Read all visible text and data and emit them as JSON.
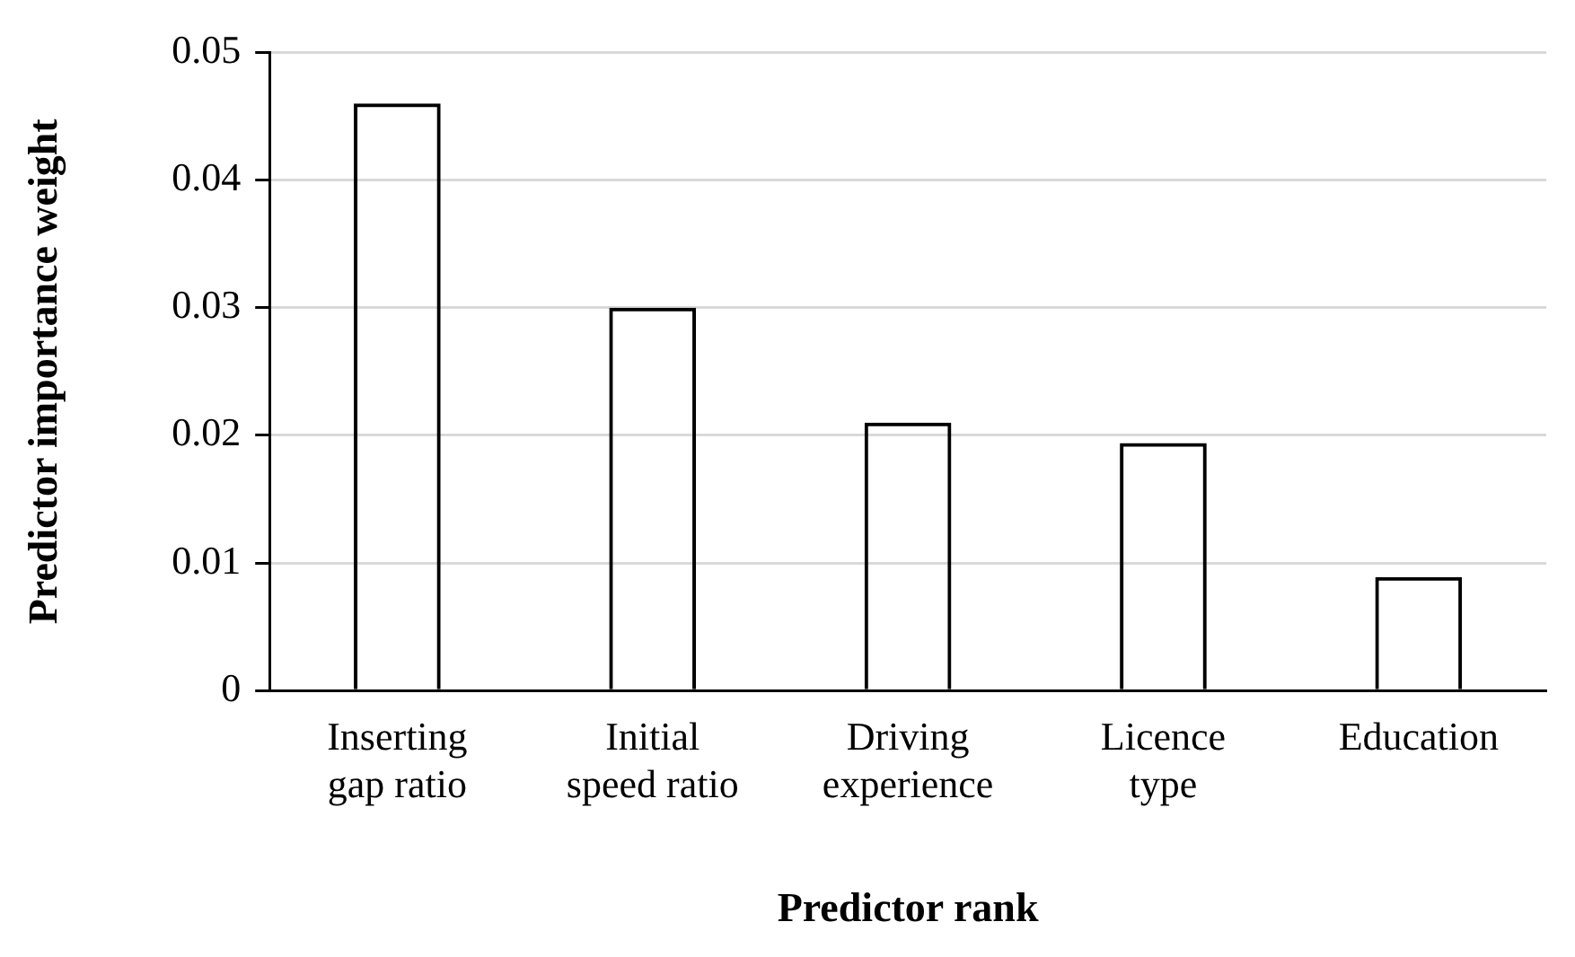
{
  "chart_data": {
    "type": "bar",
    "xlabel": "Predictor rank",
    "ylabel": "Predictor importance weight",
    "categories": [
      "Inserting gap ratio",
      "Initial speed ratio",
      "Driving experience",
      "Licence type",
      "Education"
    ],
    "values": [
      0.046,
      0.03,
      0.021,
      0.0194,
      0.0089
    ],
    "color": "#000000",
    "ylim": [
      0,
      0.05
    ],
    "yticks": [
      0,
      0.01,
      0.02,
      0.03,
      0.04,
      0.05
    ],
    "grid": "y",
    "legend": false
  }
}
